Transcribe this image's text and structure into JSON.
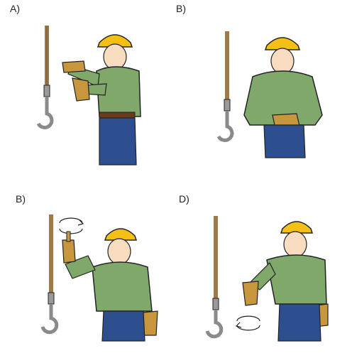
{
  "panels": [
    {
      "label": "A)"
    },
    {
      "label": "B)"
    },
    {
      "label": "B)"
    },
    {
      "label": "D)"
    }
  ],
  "colors": {
    "hardhat": "#f5c016",
    "shirt": "#7fa86a",
    "shirt_shade": "#5e8a4d",
    "jeans": "#2e4f8f",
    "glove": "#c8963c",
    "skin": "#f7dcc0",
    "rope": "#9c7a4a",
    "hook": "#8a8a8a",
    "outline": "#222222"
  }
}
